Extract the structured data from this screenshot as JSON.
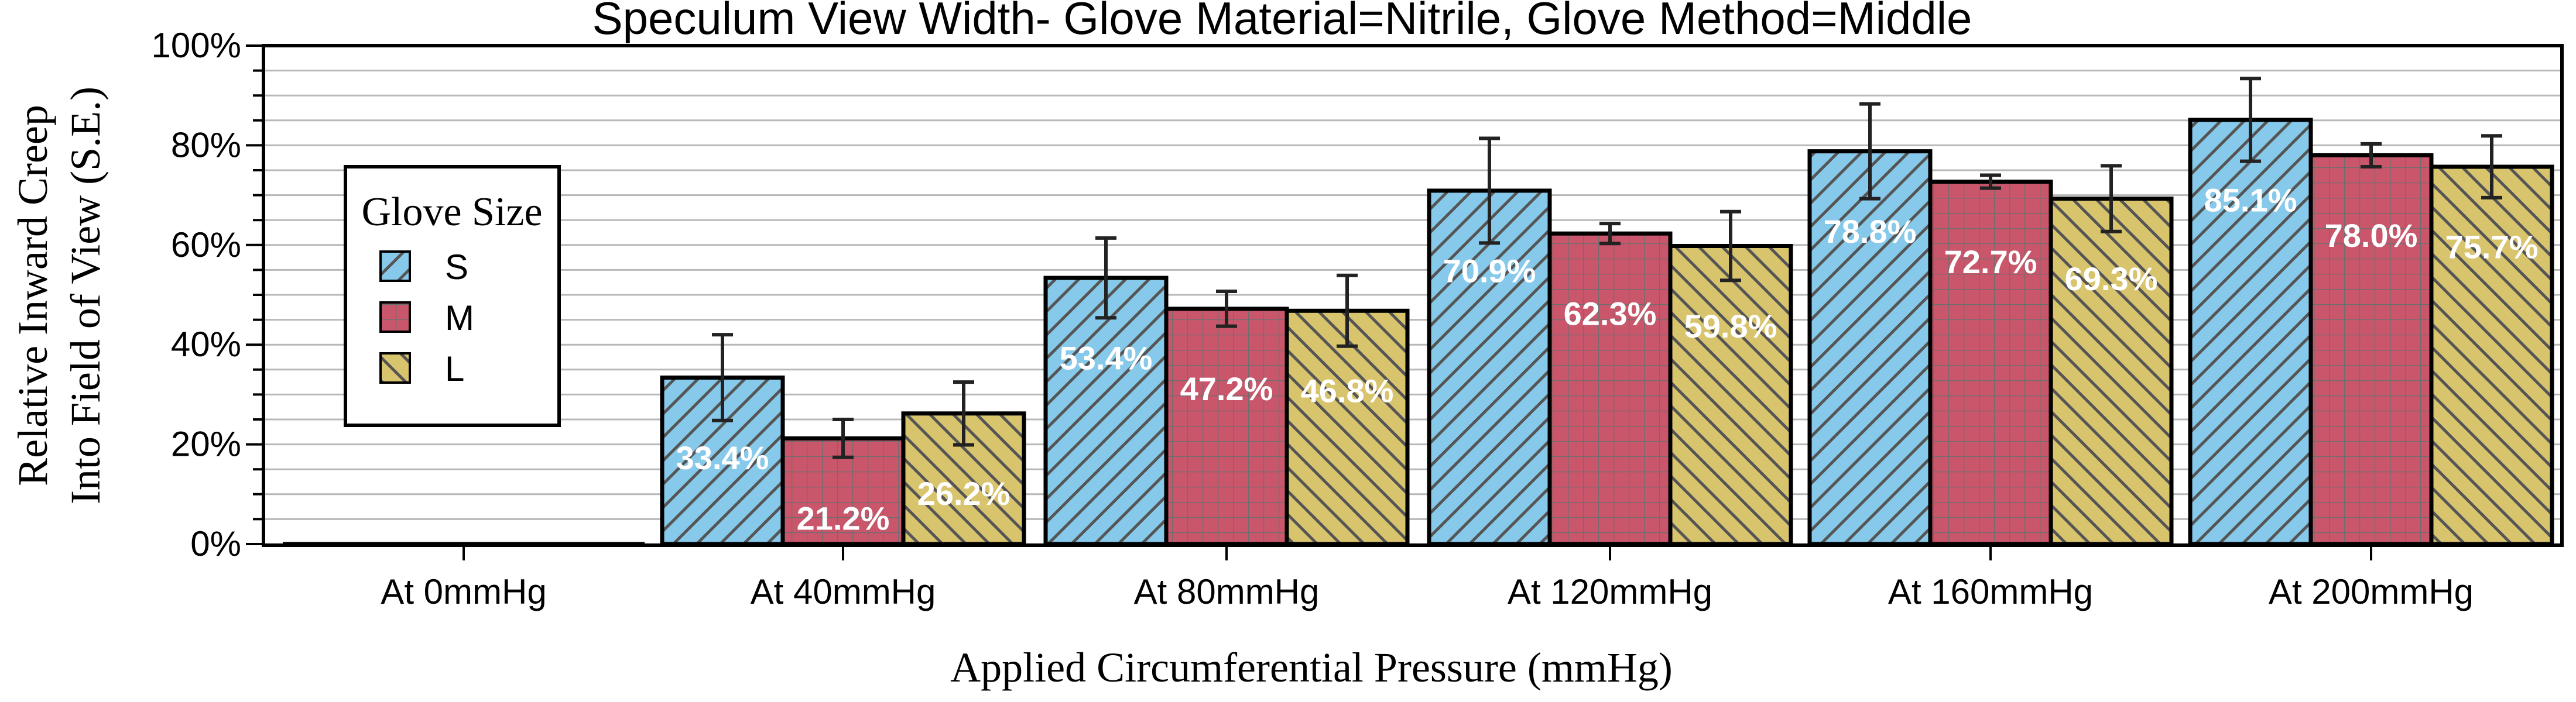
{
  "chart_data": {
    "type": "bar",
    "title": "Speculum View Width- Glove Material=Nitrile, Glove Method=Middle",
    "xlabel": "Applied Circumferential Pressure (mmHg)",
    "ylabel_lines": [
      "Relative Inward Creep",
      "Into Field of View (S.E.)"
    ],
    "ylim": [
      0,
      100
    ],
    "yticks": [
      0,
      20,
      40,
      60,
      80,
      100
    ],
    "ytick_labels": [
      "0%",
      "20%",
      "40%",
      "60%",
      "80%",
      "100%"
    ],
    "grid": true,
    "legend_title": "Glove Size",
    "legend_position": "upper-left",
    "categories": [
      "At 0mmHg",
      "At 40mmHg",
      "At 80mmHg",
      "At 120mmHg",
      "At 160mmHg",
      "At 200mmHg"
    ],
    "series": [
      {
        "name": "S",
        "color": "#87c9ea",
        "pattern": "hatch-forward",
        "values": [
          0,
          33.4,
          53.4,
          70.9,
          78.8,
          85.1
        ],
        "errors": [
          0,
          8.6,
          8.0,
          10.5,
          9.5,
          8.3
        ],
        "labels": [
          "",
          "33.4%",
          "53.4%",
          "70.9%",
          "78.8%",
          "85.1%"
        ]
      },
      {
        "name": "M",
        "color": "#c9566b",
        "pattern": "grid",
        "values": [
          0,
          21.2,
          47.2,
          62.3,
          72.7,
          78.0
        ],
        "errors": [
          0,
          3.8,
          3.5,
          2.0,
          1.3,
          2.3
        ],
        "labels": [
          "",
          "21.2%",
          "47.2%",
          "62.3%",
          "72.7%",
          "78.0%"
        ]
      },
      {
        "name": "L",
        "color": "#d9c46e",
        "pattern": "hatch-back",
        "values": [
          0,
          26.2,
          46.8,
          59.8,
          69.3,
          75.7
        ],
        "errors": [
          0,
          6.3,
          7.1,
          6.9,
          6.6,
          6.2
        ],
        "labels": [
          "",
          "26.2%",
          "46.8%",
          "59.8%",
          "69.3%",
          "75.7%"
        ]
      }
    ]
  }
}
